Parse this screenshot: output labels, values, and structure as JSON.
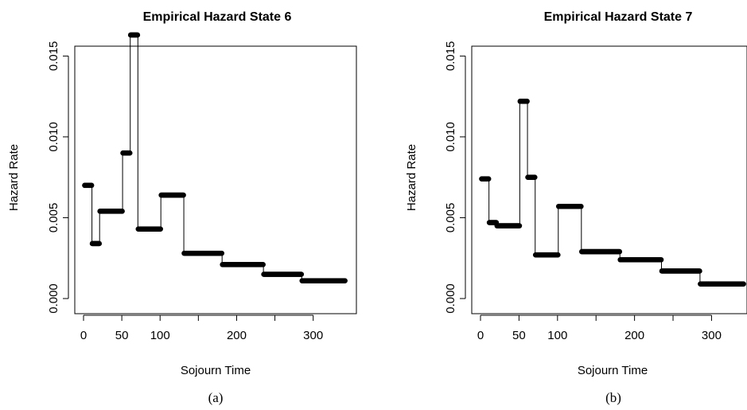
{
  "chart_data": [
    {
      "type": "step-scatter",
      "title": "Empirical Hazard State 6",
      "xlabel": "Sojourn Time",
      "ylabel": "Hazard Rate",
      "caption": "(a)",
      "xlim": [
        0,
        345
      ],
      "ylim": [
        0,
        0.0162
      ],
      "x_ticks": [
        0,
        50,
        100,
        200,
        300
      ],
      "y_ticks": [
        "0.000",
        "0.005",
        "0.010",
        "0.015"
      ],
      "grid": false,
      "segments": [
        {
          "x_start": 1,
          "x_end": 11,
          "y": 0.007
        },
        {
          "x_start": 11,
          "x_end": 21,
          "y": 0.0034
        },
        {
          "x_start": 21,
          "x_end": 51,
          "y": 0.0054
        },
        {
          "x_start": 51,
          "x_end": 61,
          "y": 0.009
        },
        {
          "x_start": 61,
          "x_end": 71,
          "y": 0.0163
        },
        {
          "x_start": 71,
          "x_end": 101,
          "y": 0.0043
        },
        {
          "x_start": 101,
          "x_end": 131,
          "y": 0.0064
        },
        {
          "x_start": 131,
          "x_end": 181,
          "y": 0.0028
        },
        {
          "x_start": 181,
          "x_end": 235,
          "y": 0.0021
        },
        {
          "x_start": 235,
          "x_end": 285,
          "y": 0.0015
        },
        {
          "x_start": 285,
          "x_end": 342,
          "y": 0.0011
        }
      ]
    },
    {
      "type": "step-scatter",
      "title": "Empirical Hazard State 7",
      "xlabel": "Sojourn Time",
      "ylabel": "Hazard Rate",
      "caption": "(b)",
      "xlim": [
        0,
        345
      ],
      "ylim": [
        0,
        0.0162
      ],
      "x_ticks": [
        0,
        50,
        100,
        200,
        300
      ],
      "y_ticks": [
        "0.000",
        "0.005",
        "0.010",
        "0.015"
      ],
      "grid": false,
      "segments": [
        {
          "x_start": 1,
          "x_end": 11,
          "y": 0.0074
        },
        {
          "x_start": 11,
          "x_end": 21,
          "y": 0.0047
        },
        {
          "x_start": 21,
          "x_end": 51,
          "y": 0.0045
        },
        {
          "x_start": 51,
          "x_end": 61,
          "y": 0.0122
        },
        {
          "x_start": 61,
          "x_end": 71,
          "y": 0.0075
        },
        {
          "x_start": 71,
          "x_end": 101,
          "y": 0.0027
        },
        {
          "x_start": 101,
          "x_end": 131,
          "y": 0.0057
        },
        {
          "x_start": 131,
          "x_end": 181,
          "y": 0.0029
        },
        {
          "x_start": 181,
          "x_end": 235,
          "y": 0.0024
        },
        {
          "x_start": 235,
          "x_end": 285,
          "y": 0.0017
        },
        {
          "x_start": 285,
          "x_end": 342,
          "y": 0.0009
        }
      ]
    }
  ]
}
